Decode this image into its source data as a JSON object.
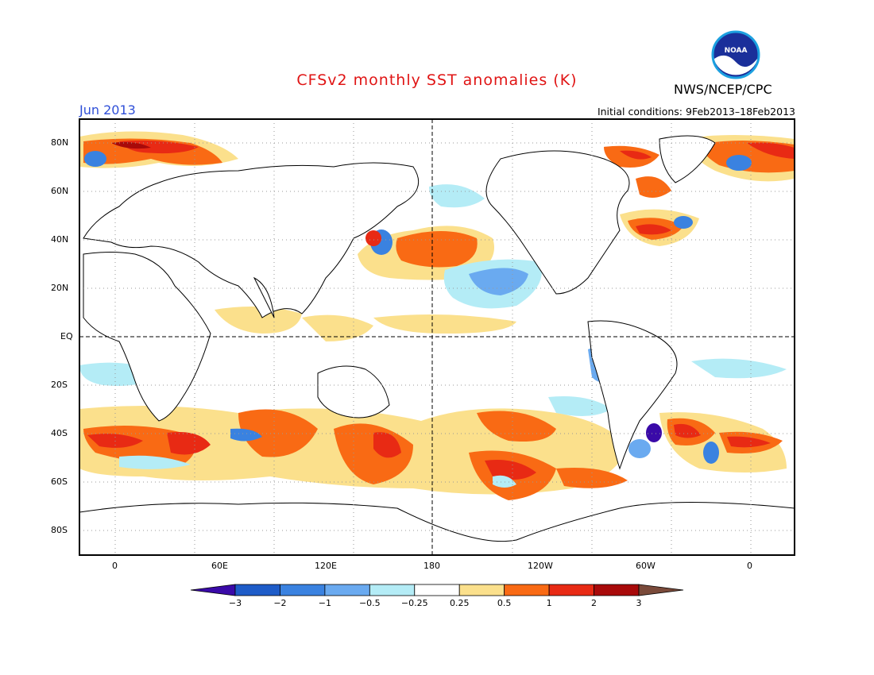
{
  "header": {
    "title": "CFSv2 monthly SST anomalies (K)",
    "org": "NWS/NCEP/CPC",
    "month": "Jun 2013",
    "initial_conditions": "Initial conditions: 9Feb2013–18Feb2013"
  },
  "logo": {
    "name": "noaa-logo",
    "text": "NOAA"
  },
  "map": {
    "lat_ticks": [
      "80N",
      "60N",
      "40N",
      "20N",
      "EQ",
      "20S",
      "40S",
      "60S",
      "80S"
    ],
    "lon_ticks": [
      "0",
      "60E",
      "120E",
      "180",
      "120W",
      "60W",
      "0"
    ],
    "reference_lines": [
      "EQ",
      "180"
    ],
    "grid": "dotted"
  },
  "colorbar": {
    "labels": [
      "−3",
      "−2",
      "−1",
      "−0.5",
      "−0.25",
      "0.25",
      "0.5",
      "1",
      "2",
      "3"
    ],
    "colors": [
      "#3a0aa8",
      "#1e5cc8",
      "#3a82e0",
      "#6aaaf0",
      "#b4ecf6",
      "#ffffff",
      "#fbe08c",
      "#f96a14",
      "#e82a14",
      "#a80a0a",
      "#7a4a3a"
    ]
  }
}
